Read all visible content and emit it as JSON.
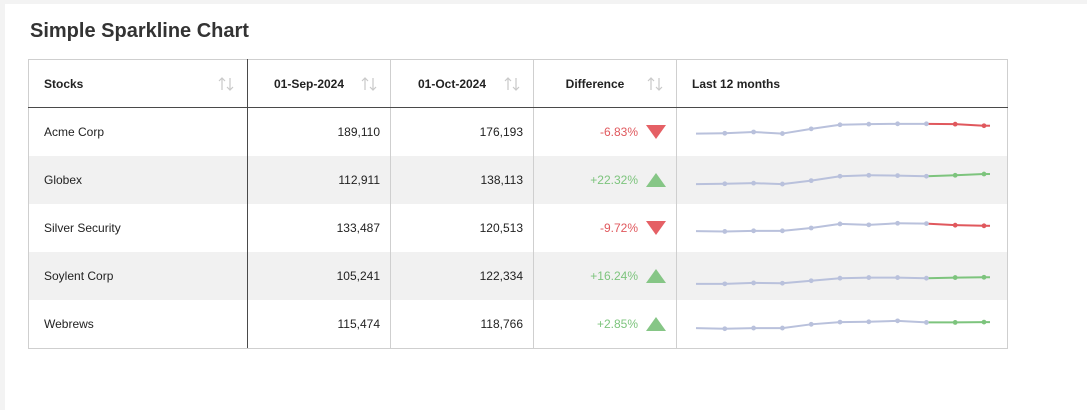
{
  "title": "Simple Sparkline Chart",
  "columns": {
    "stocks": "Stocks",
    "sep": "01-Sep-2024",
    "oct": "01-Oct-2024",
    "difference": "Difference",
    "trend": "Last 12 months"
  },
  "colors": {
    "positive": "#7dc47d",
    "negative": "#e0585d",
    "spark": "#b9c1dc",
    "up_triangle": "#86c686",
    "down_triangle": "#e56065"
  },
  "rows": [
    {
      "name": "Acme Corp",
      "sep": "189,110",
      "oct": "176,193",
      "diff": "-6.83%",
      "direction": "down",
      "trend": [
        120,
        121,
        125,
        120,
        135,
        148,
        150,
        151,
        151,
        150,
        145
      ]
    },
    {
      "name": "Globex",
      "sep": "112,911",
      "oct": "138,113",
      "diff": "+22.32%",
      "direction": "up",
      "trend": [
        112,
        113,
        115,
        112,
        123,
        137,
        140,
        139,
        137,
        140,
        144
      ]
    },
    {
      "name": "Silver Security",
      "sep": "133,487",
      "oct": "120,513",
      "diff": "-9.72%",
      "direction": "down",
      "trend": [
        115,
        114,
        116,
        116,
        125,
        138,
        135,
        140,
        139,
        134,
        132
      ]
    },
    {
      "name": "Soylent Corp",
      "sep": "105,241",
      "oct": "122,334",
      "diff": "+16.24%",
      "direction": "up",
      "trend": [
        100,
        100,
        103,
        102,
        110,
        118,
        120,
        120,
        118,
        120,
        121
      ]
    },
    {
      "name": "Webrews",
      "sep": "115,474",
      "oct": "118,766",
      "diff": "+2.85%",
      "direction": "up",
      "trend": [
        112,
        110,
        112,
        112,
        124,
        131,
        132,
        135,
        130,
        130,
        131
      ]
    }
  ]
}
